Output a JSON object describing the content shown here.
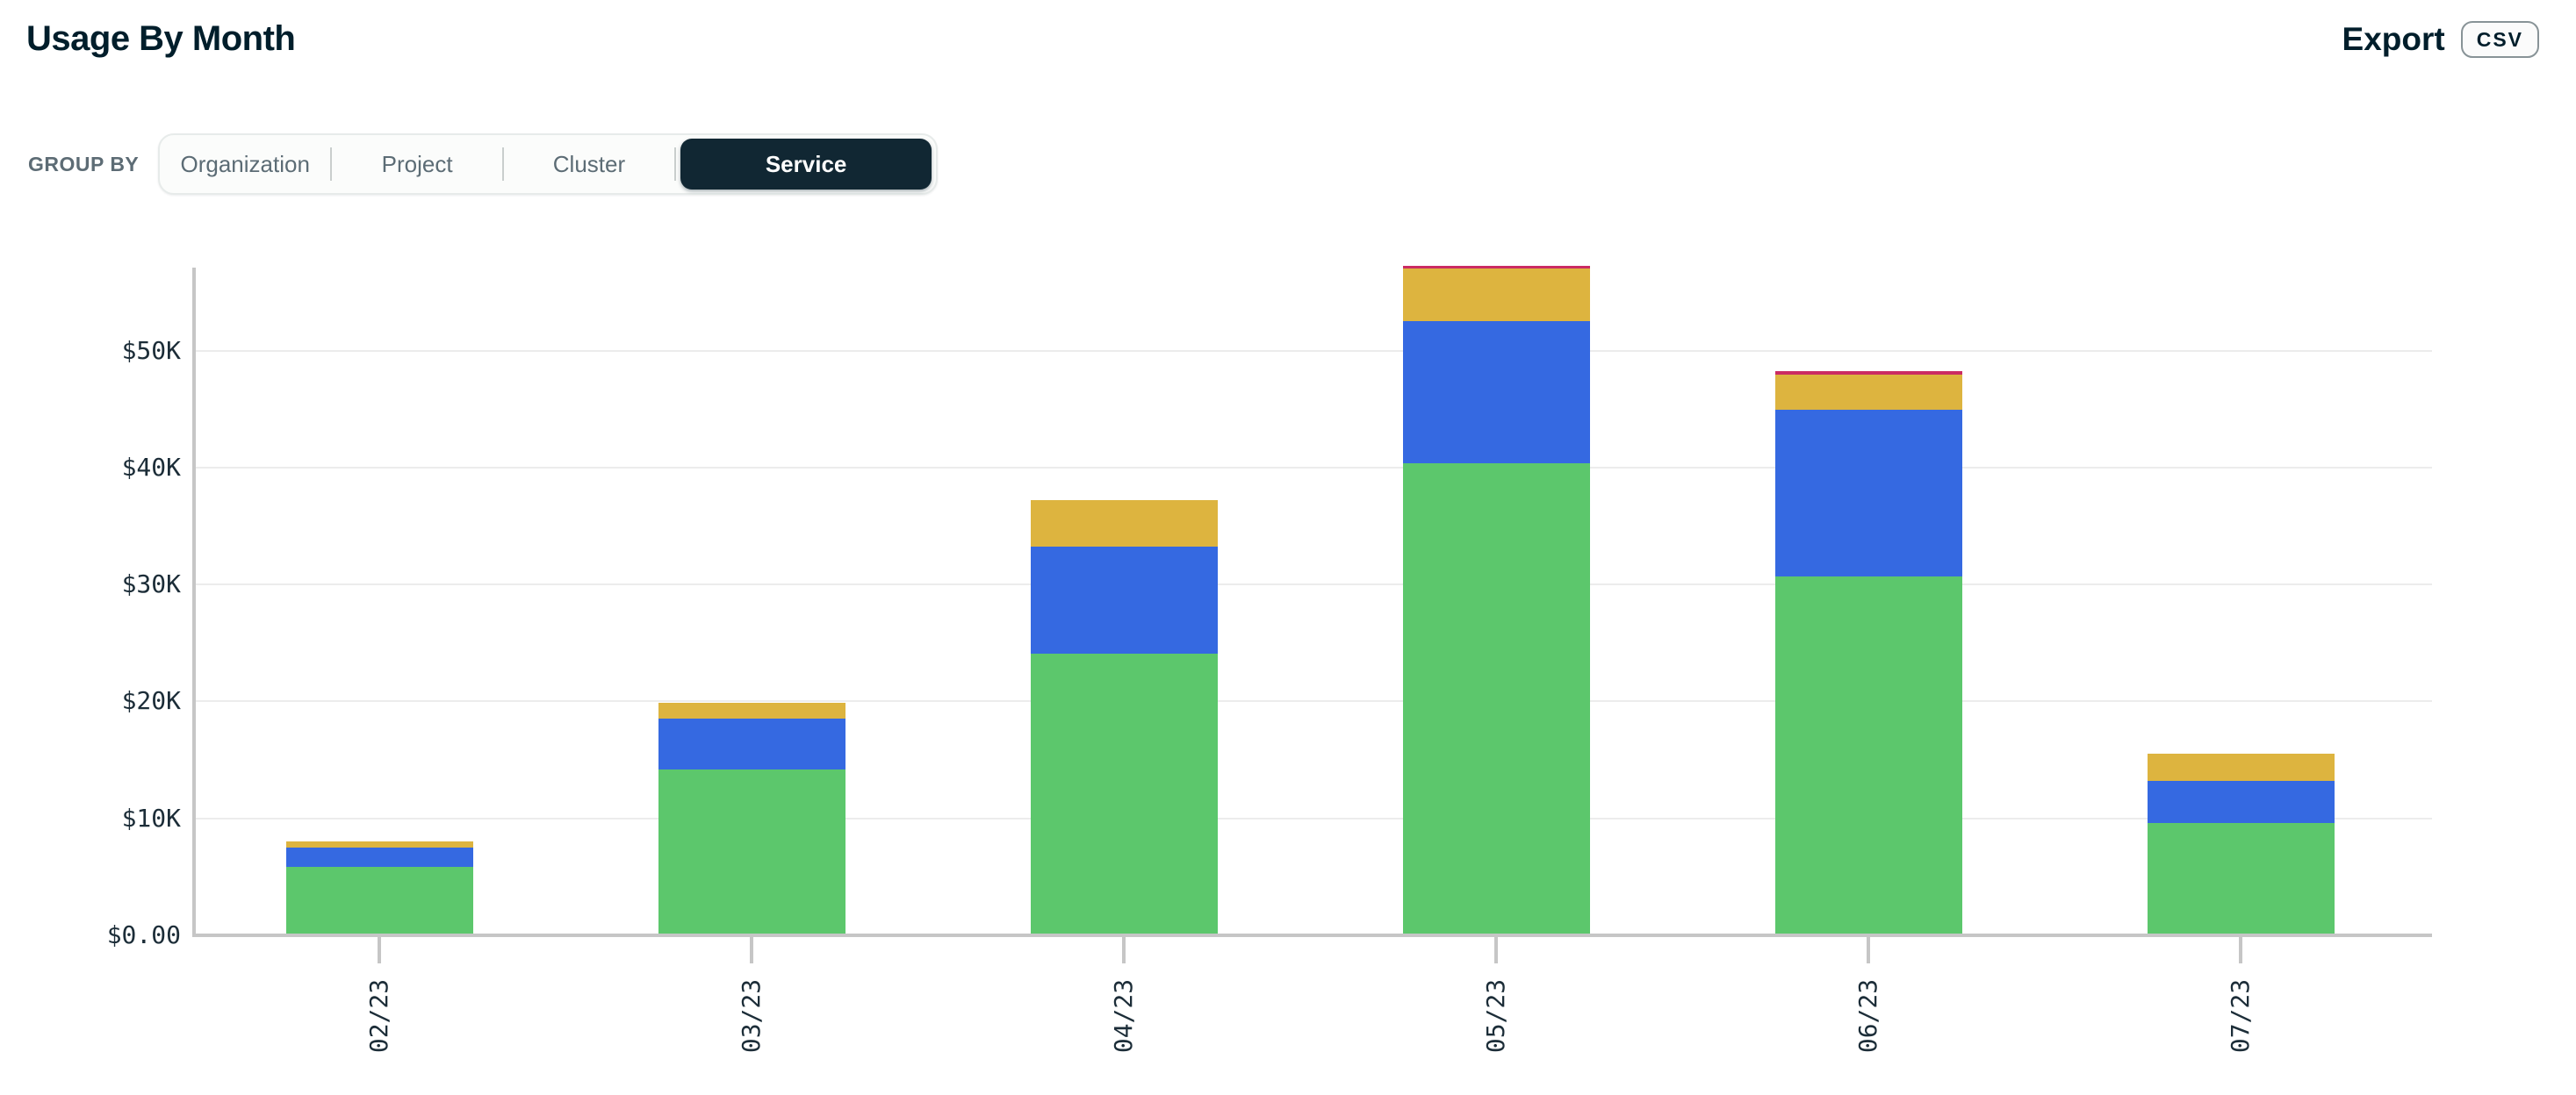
{
  "header": {
    "title": "Usage By Month",
    "export_label": "Export",
    "csv_button_label": "CSV"
  },
  "group_by": {
    "label": "GROUP BY",
    "options": [
      "Organization",
      "Project",
      "Cluster",
      "Service"
    ],
    "selected": "Service"
  },
  "colors": {
    "title_text": "#001E2B",
    "tab_text": "#5C6C75",
    "selected_tab_bg": "#112733",
    "selected_tab_text": "#FFFFFF",
    "axis_line": "#C6C6C6",
    "gridline": "#ECECEC",
    "axis_label_text": "#1C2D38"
  },
  "chart_data": {
    "type": "bar",
    "stacked": true,
    "title": "Usage By Month",
    "xlabel": "",
    "ylabel": "",
    "legend": "none",
    "grid": "horizontal",
    "ylim": [
      0,
      57000
    ],
    "currency_prefix": "$",
    "categories": [
      "02/23",
      "03/23",
      "04/23",
      "05/23",
      "06/23",
      "07/23"
    ],
    "series": [
      {
        "name": "green-series",
        "color": "#5CC76C",
        "values": [
          5700,
          14000,
          23900,
          40200,
          30500,
          9450
        ]
      },
      {
        "name": "blue-series",
        "color": "#3569E1",
        "values": [
          1650,
          4400,
          9150,
          12150,
          14300,
          3600
        ]
      },
      {
        "name": "gold-series",
        "color": "#DDB43F",
        "values": [
          500,
          1300,
          4000,
          4500,
          3000,
          2300
        ]
      },
      {
        "name": "pink-series",
        "color": "#CB2B63",
        "values": [
          0,
          0,
          0,
          250,
          250,
          0
        ]
      }
    ],
    "totals": [
      7850,
      19700,
      37050,
      57100,
      48050,
      15350
    ],
    "y_ticks": [
      {
        "label": "$0.00",
        "value": 0
      },
      {
        "label": "$10K",
        "value": 10000
      },
      {
        "label": "$20K",
        "value": 20000
      },
      {
        "label": "$30K",
        "value": 30000
      },
      {
        "label": "$40K",
        "value": 40000
      },
      {
        "label": "$50K",
        "value": 50000
      }
    ]
  }
}
